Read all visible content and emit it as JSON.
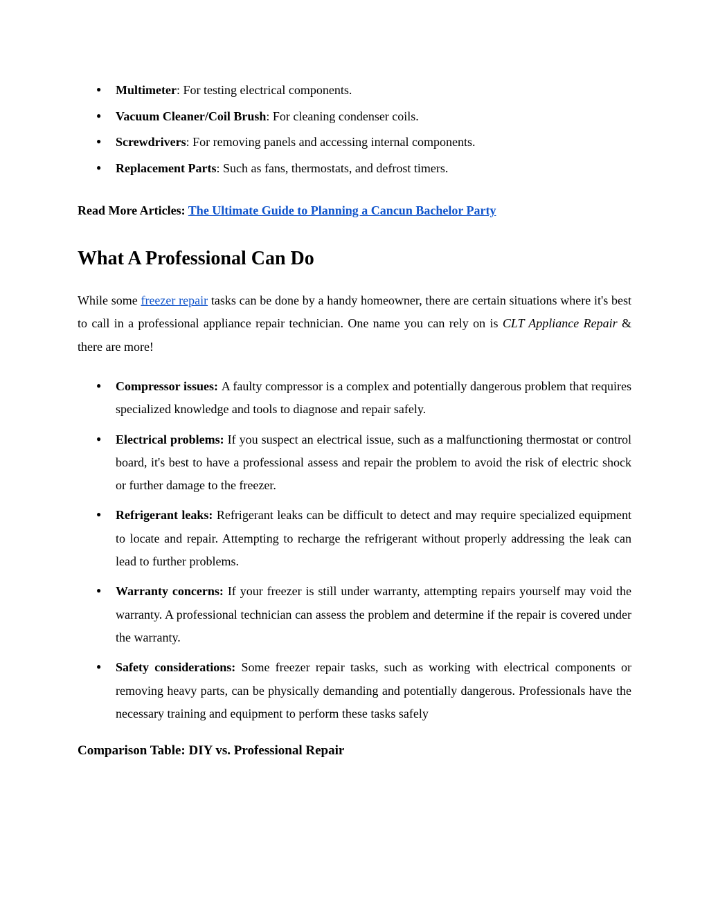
{
  "tools": [
    {
      "name": "Multimeter",
      "desc": ": For testing electrical components."
    },
    {
      "name": "Vacuum Cleaner/Coil Brush",
      "desc": ": For cleaning condenser coils."
    },
    {
      "name": "Screwdrivers",
      "desc": ": For removing panels and accessing internal components."
    },
    {
      "name": "Replacement Parts",
      "desc": ": Such as fans, thermostats, and defrost timers."
    }
  ],
  "readMore": {
    "label": "Read More Articles: ",
    "linkText": "The Ultimate Guide to Planning a Cancun Bachelor Party"
  },
  "heading": "What A Professional Can Do",
  "intro": {
    "part1": "While some ",
    "link": "freezer repair",
    "part2": " tasks can be done by a handy homeowner, there are certain situations where it's best to call in a professional appliance repair technician. One name you can rely on is ",
    "italic": "CLT Appliance Repair",
    "part3": " & there are more!"
  },
  "proItems": [
    {
      "name": "Compressor issues: ",
      "desc": "A faulty compressor is a complex and potentially dangerous problem that requires specialized knowledge and tools to diagnose and repair safely."
    },
    {
      "name": "Electrical problems: ",
      "desc": "If you suspect an electrical issue, such as a malfunctioning thermostat or control board, it's best to have a professional assess and repair the problem to avoid the risk of electric shock or further damage to the freezer."
    },
    {
      "name": "Refrigerant leaks: ",
      "desc": "Refrigerant leaks can be difficult to detect and may require specialized equipment to locate and repair. Attempting to recharge the refrigerant without properly addressing the leak can lead to further problems."
    },
    {
      "name": "Warranty concerns: ",
      "desc": "If your freezer is still under warranty, attempting repairs yourself may void the warranty. A professional technician can assess the problem and determine if the repair is covered under the warranty."
    },
    {
      "name": "Safety considerations: ",
      "desc": "Some freezer repair tasks, such as working with electrical components or removing heavy parts, can be physically demanding and potentially dangerous. Professionals have the necessary training and equipment to perform these tasks safely"
    }
  ],
  "subHeading": "Comparison Table: DIY vs. Professional Repair",
  "colors": {
    "link": "#1155cc",
    "text": "#000000",
    "background": "#ffffff"
  }
}
